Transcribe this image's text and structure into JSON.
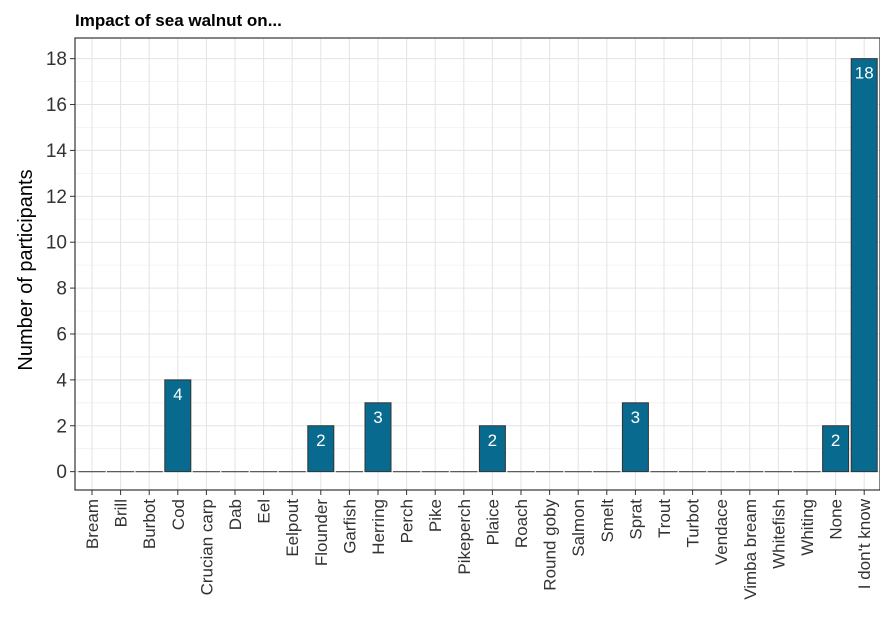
{
  "chart_data": {
    "type": "bar",
    "title": "Impact of sea walnut on...",
    "ylabel": "Number of participants",
    "xlabel": "",
    "ylim": [
      -0.8,
      18.9
    ],
    "yticks": [
      0,
      2,
      4,
      6,
      8,
      10,
      12,
      14,
      16,
      18
    ],
    "grid": true,
    "legend": "none",
    "bar_color": "#086a8f",
    "categories": [
      "Bream",
      "Brill",
      "Burbot",
      "Cod",
      "Crucian carp",
      "Dab",
      "Eel",
      "Eelpout",
      "Flounder",
      "Garfish",
      "Herring",
      "Perch",
      "Pike",
      "Pikeperch",
      "Plaice",
      "Roach",
      "Round goby",
      "Salmon",
      "Smelt",
      "Sprat",
      "Trout",
      "Turbot",
      "Vendace",
      "Vimba bream",
      "Whitefish",
      "Whiting",
      "None",
      "I don't know"
    ],
    "values": [
      0,
      0,
      0,
      4,
      0,
      0,
      0,
      0,
      2,
      0,
      3,
      0,
      0,
      0,
      2,
      0,
      0,
      0,
      0,
      3,
      0,
      0,
      0,
      0,
      0,
      0,
      2,
      18
    ],
    "data_labels": [
      "",
      "",
      "",
      "4",
      "",
      "",
      "",
      "",
      "2",
      "",
      "3",
      "",
      "",
      "",
      "2",
      "",
      "",
      "",
      "",
      "3",
      "",
      "",
      "",
      "",
      "",
      "",
      "2",
      "18"
    ]
  }
}
